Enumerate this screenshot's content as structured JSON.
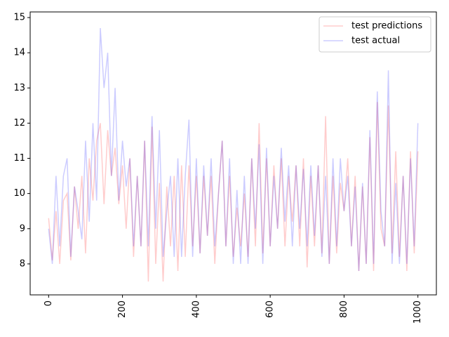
{
  "chart_data": {
    "type": "line",
    "x": [
      0,
      10,
      20,
      30,
      40,
      50,
      60,
      70,
      80,
      90,
      100,
      110,
      120,
      130,
      140,
      150,
      160,
      170,
      180,
      190,
      200,
      210,
      220,
      230,
      240,
      250,
      260,
      270,
      280,
      290,
      300,
      310,
      320,
      330,
      340,
      350,
      360,
      370,
      380,
      390,
      400,
      410,
      420,
      430,
      440,
      450,
      460,
      470,
      480,
      490,
      500,
      510,
      520,
      530,
      540,
      550,
      560,
      570,
      580,
      590,
      600,
      610,
      620,
      630,
      640,
      650,
      660,
      670,
      680,
      690,
      700,
      710,
      720,
      730,
      740,
      750,
      760,
      770,
      780,
      790,
      800,
      810,
      820,
      830,
      840,
      850,
      860,
      870,
      880,
      890,
      900,
      910,
      920,
      930,
      940,
      950,
      960,
      970,
      980,
      990,
      1000
    ],
    "series": [
      {
        "name": "test predictions",
        "color": "rgba(255,0,0,0.2)",
        "values": [
          9.3,
          8.1,
          9.5,
          8.0,
          9.8,
          10.0,
          8.1,
          10.2,
          9.0,
          10.5,
          8.3,
          11.0,
          9.8,
          11.5,
          12.0,
          9.7,
          11.8,
          10.5,
          11.3,
          9.7,
          10.8,
          9.0,
          11.0,
          8.2,
          10.5,
          8.5,
          11.5,
          7.5,
          11.9,
          8.0,
          10.3,
          7.5,
          10.2,
          8.5,
          10.5,
          7.8,
          10.8,
          8.2,
          10.8,
          8.5,
          10.5,
          8.3,
          10.5,
          8.8,
          10.5,
          8.0,
          10.0,
          11.5,
          8.5,
          10.5,
          8.2,
          9.6,
          8.5,
          10.0,
          8.2,
          11.0,
          8.5,
          12.0,
          8.3,
          11.0,
          8.5,
          10.8,
          9.0,
          11.0,
          8.5,
          10.5,
          9.2,
          10.8,
          8.5,
          11.0,
          7.9,
          10.5,
          8.5,
          10.8,
          8.3,
          12.2,
          8.0,
          10.5,
          8.3,
          10.3,
          9.5,
          11.0,
          8.5,
          10.5,
          7.8,
          10.2,
          8.0,
          11.6,
          7.8,
          12.6,
          9.0,
          8.5,
          12.5,
          8.3,
          11.2,
          8.2,
          10.5,
          7.8,
          11.2,
          8.3,
          11.2
        ]
      },
      {
        "name": "test actual",
        "color": "rgba(0,0,255,0.2)",
        "values": [
          9.0,
          8.0,
          10.5,
          8.5,
          10.5,
          11.0,
          8.2,
          10.2,
          9.5,
          8.7,
          11.5,
          9.2,
          12.0,
          9.8,
          14.7,
          13.0,
          14.0,
          10.5,
          13.0,
          9.8,
          11.5,
          10.2,
          11.0,
          8.5,
          10.5,
          8.5,
          11.5,
          8.5,
          12.2,
          9.0,
          11.8,
          8.2,
          9.5,
          10.5,
          8.2,
          11.0,
          8.2,
          10.5,
          12.1,
          8.2,
          11.0,
          8.3,
          10.8,
          8.8,
          11.0,
          8.5,
          10.0,
          11.5,
          8.5,
          11.0,
          8.0,
          10.1,
          8.0,
          10.5,
          8.0,
          11.0,
          9.0,
          11.4,
          8.0,
          11.3,
          8.5,
          10.5,
          9.0,
          11.3,
          9.2,
          10.8,
          8.5,
          10.8,
          9.0,
          10.7,
          8.5,
          10.8,
          8.8,
          10.8,
          8.2,
          10.5,
          8.0,
          11.0,
          8.5,
          11.0,
          9.5,
          10.5,
          8.5,
          10.2,
          7.8,
          10.3,
          8.0,
          11.8,
          8.0,
          12.9,
          9.5,
          8.5,
          13.5,
          8.0,
          10.3,
          8.0,
          10.5,
          8.0,
          11.0,
          8.5,
          12.0
        ]
      }
    ],
    "xlim": [
      -50,
      1050
    ],
    "xticks": [
      0,
      200,
      400,
      600,
      800,
      1000
    ],
    "ylim": [
      7.12,
      15.16
    ],
    "yticks": [
      8,
      9,
      10,
      11,
      12,
      13,
      14,
      15
    ],
    "legend": "upper right"
  }
}
